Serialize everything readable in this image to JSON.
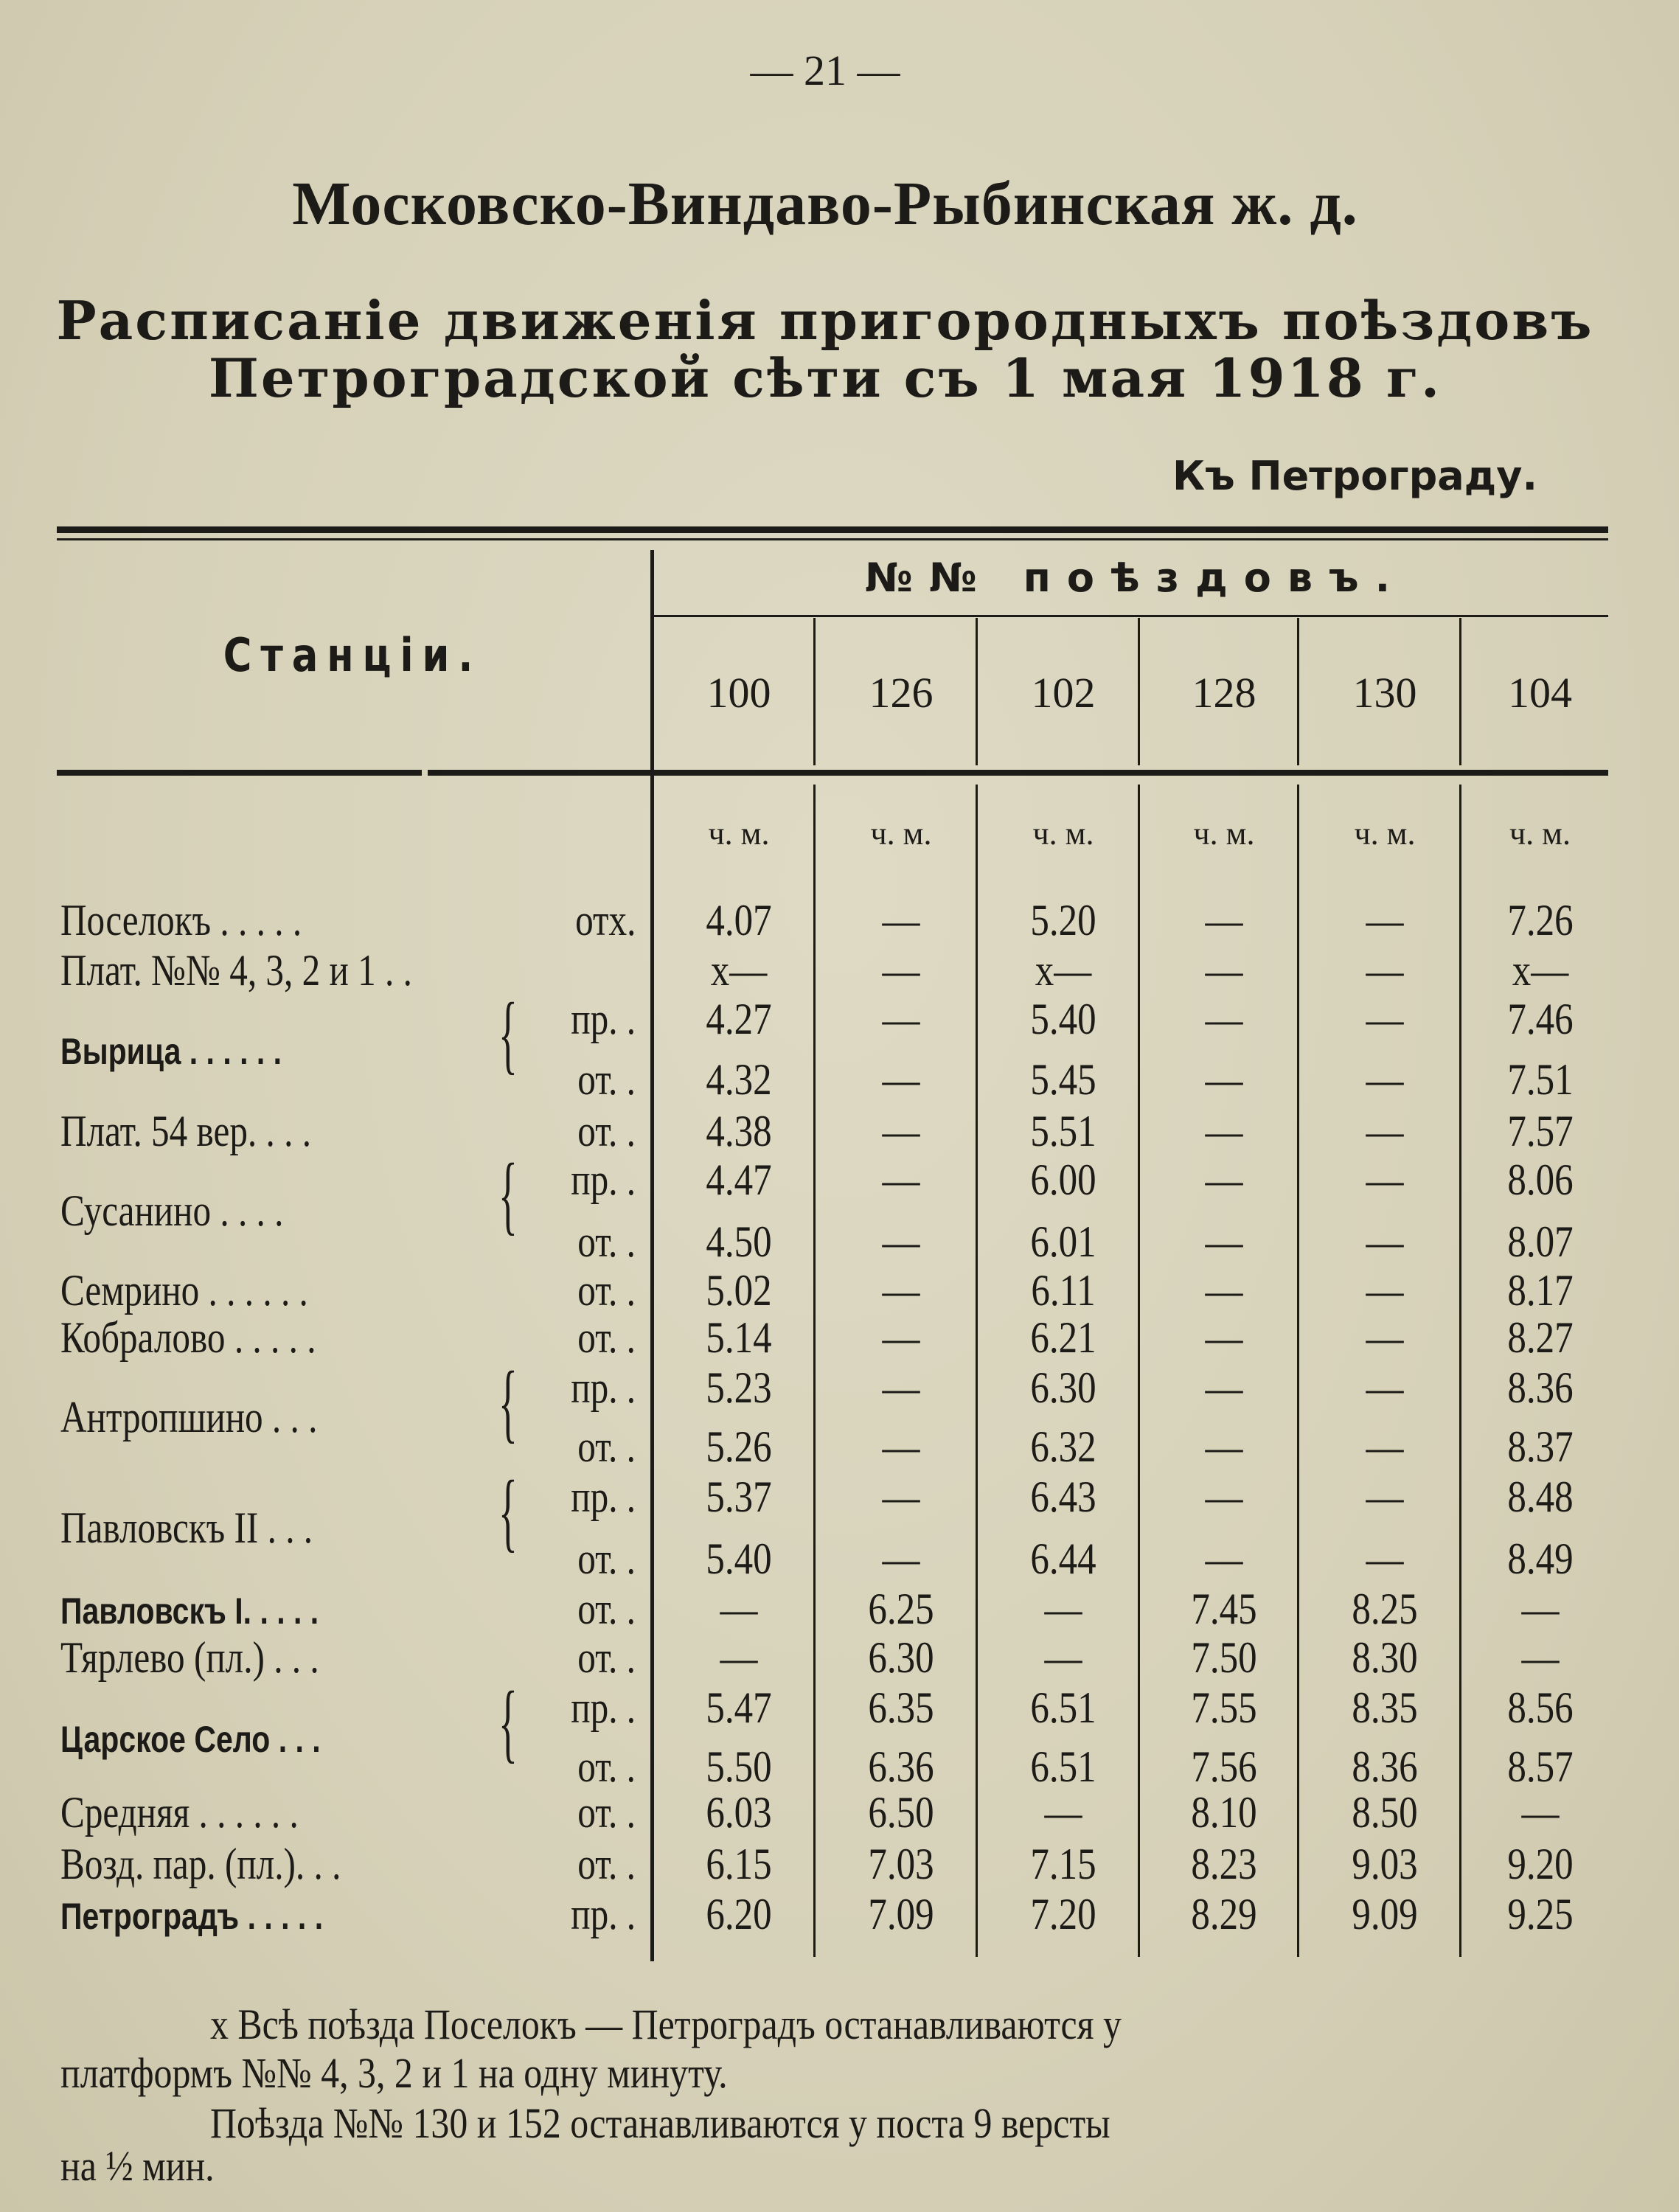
{
  "page_number": "— 21 —",
  "title": "Московско-Виндаво-Рыбинская ж. д.",
  "subtitle": [
    "Расписаніе движенія пригородныхъ поѣздовъ",
    "Петроградской сѣти съ 1 мая 1918 г."
  ],
  "direction": "Къ Петрограду.",
  "table": {
    "stations_header": "Станціи.",
    "trains_header": "№№ поѣздовъ.",
    "trains": [
      "100",
      "126",
      "102",
      "128",
      "130",
      "104"
    ],
    "unit": "ч. м.",
    "groups": [
      {
        "station": "Поселокъ . . . . .",
        "stops": [
          {
            "type": "отх.",
            "times": [
              "4.07",
              "—",
              "5.20",
              "—",
              "—",
              "7.26"
            ]
          }
        ]
      },
      {
        "station": "Плат. №№ 4, 3, 2 и 1 . .",
        "stops": [
          {
            "type": "",
            "times": [
              "x—",
              "—",
              "x—",
              "—",
              "—",
              "x—"
            ]
          }
        ]
      },
      {
        "station": "Вырица . . . . . .",
        "bold": true,
        "stops": [
          {
            "type": "пр. .",
            "times": [
              "4.27",
              "—",
              "5.40",
              "—",
              "—",
              "7.46"
            ]
          },
          {
            "type": "от. .",
            "times": [
              "4.32",
              "—",
              "5.45",
              "—",
              "—",
              "7.51"
            ]
          }
        ]
      },
      {
        "station": "Плат. 54 вер. . . .",
        "stops": [
          {
            "type": "от. .",
            "times": [
              "4.38",
              "—",
              "5.51",
              "—",
              "—",
              "7.57"
            ]
          }
        ]
      },
      {
        "station": "Сусанино .  . . .",
        "stops": [
          {
            "type": "пр. .",
            "times": [
              "4.47",
              "—",
              "6.00",
              "—",
              "—",
              "8.06"
            ]
          },
          {
            "type": "от. .",
            "times": [
              "4.50",
              "—",
              "6.01",
              "—",
              "—",
              "8.07"
            ]
          }
        ]
      },
      {
        "station": "Семрино . . . . . .",
        "stops": [
          {
            "type": "от. .",
            "times": [
              "5.02",
              "—",
              "6.11",
              "—",
              "—",
              "8.17"
            ]
          }
        ]
      },
      {
        "station": "Кобралово . . . . .",
        "stops": [
          {
            "type": "от. .",
            "times": [
              "5.14",
              "—",
              "6.21",
              "—",
              "—",
              "8.27"
            ]
          }
        ]
      },
      {
        "station": "Антропшино . . .",
        "stops": [
          {
            "type": "пр. .",
            "times": [
              "5.23",
              "—",
              "6.30",
              "—",
              "—",
              "8.36"
            ]
          },
          {
            "type": "от. .",
            "times": [
              "5.26",
              "—",
              "6.32",
              "—",
              "—",
              "8.37"
            ]
          }
        ]
      },
      {
        "station": "Павловскъ II . . .",
        "stops": [
          {
            "type": "пр. .",
            "times": [
              "5.37",
              "—",
              "6.43",
              "—",
              "—",
              "8.48"
            ]
          },
          {
            "type": "от. .",
            "times": [
              "5.40",
              "—",
              "6.44",
              "—",
              "—",
              "8.49"
            ]
          }
        ]
      },
      {
        "station": "Павловскъ I. . . . .",
        "bold": true,
        "stops": [
          {
            "type": "от. .",
            "times": [
              "—",
              "6.25",
              "—",
              "7.45",
              "8.25",
              "—"
            ]
          }
        ]
      },
      {
        "station": "Тярлево (пл.) . . .",
        "stops": [
          {
            "type": "от. .",
            "times": [
              "—",
              "6.30",
              "—",
              "7.50",
              "8.30",
              "—"
            ]
          }
        ]
      },
      {
        "station": "Царское Село . . .",
        "bold": true,
        "stops": [
          {
            "type": "пр. .",
            "times": [
              "5.47",
              "6.35",
              "6.51",
              "7.55",
              "8.35",
              "8.56"
            ]
          },
          {
            "type": "от. .",
            "times": [
              "5.50",
              "6.36",
              "6.51",
              "7.56",
              "8.36",
              "8.57"
            ]
          }
        ]
      },
      {
        "station": "Средняя . . . . . .",
        "stops": [
          {
            "type": "от. .",
            "times": [
              "6.03",
              "6.50",
              "—",
              "8.10",
              "8.50",
              "—"
            ]
          }
        ]
      },
      {
        "station": "Возд. пар. (пл.). . .",
        "stops": [
          {
            "type": "от. .",
            "times": [
              "6.15",
              "7.03",
              "7.15",
              "8.23",
              "9.03",
              "9.20"
            ]
          }
        ]
      },
      {
        "station": "Петроградъ . . . . .",
        "bold": true,
        "stops": [
          {
            "type": "пр. .",
            "times": [
              "6.20",
              "7.09",
              "7.20",
              "8.29",
              "9.09",
              "9.25"
            ]
          }
        ]
      }
    ]
  },
  "footnotes": [
    "x Всѣ  поѣзда Поселокъ — Петроградъ останавливаются  у",
    "платформъ №№ 4, 3, 2 и 1 на одну минуту.",
    "Поѣзда №№ 130 и 152 останавливаются  у поста 9 версты",
    "на ½ мин."
  ]
}
